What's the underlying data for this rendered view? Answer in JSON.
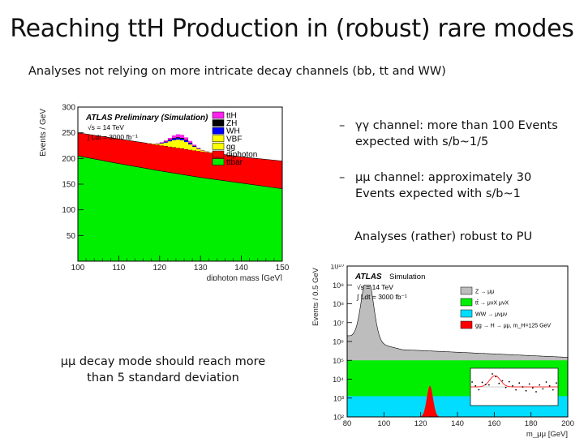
{
  "slide": {
    "title": "Reaching ttH Production in (robust) rare modes",
    "subtitle": "Analyses not relying on more intricate decay channels (bb, tt and WW)"
  },
  "bullets": {
    "gamma": {
      "dash": "–",
      "line1": "γγ channel: more than 100 Events",
      "line2": "expected with s/b~1/5"
    },
    "mumu": {
      "dash": "–",
      "line1": "μμ channel: approximately 30",
      "line2": "Events expected with s/b~1"
    },
    "robust": "Analyses (rather) robust to PU",
    "mumu_decay_line1": "μμ decay mode should reach more",
    "mumu_decay_line2": "than 5 standard deviation"
  },
  "chart_data": [
    {
      "type": "area",
      "ylabel": "Events / GeV",
      "xlabel": "diphoton mass [GeV]",
      "xlim": [
        100,
        150
      ],
      "ylim": [
        0,
        300
      ],
      "xticks": [
        "100",
        "110",
        "120",
        "130",
        "140",
        "150"
      ],
      "yticks": [
        "50",
        "100",
        "150",
        "200",
        "250",
        "300"
      ],
      "header": "ATLAS Preliminary (Simulation)",
      "energy": "√s = 14 TeV",
      "lumi": "∫ Ldt = 3000 fb⁻¹",
      "legend": [
        "ttH",
        "ZH",
        "WH",
        "VBF",
        "gg",
        "diphoton",
        "ttbar"
      ],
      "colors": {
        "ttH": "#ff22ee",
        "ZH": "#000000",
        "WH": "#0000ff",
        "VBF": "#ffff00",
        "gg": "#ffff00",
        "diphoton": "#ff0000",
        "ttbar": "#00ee00"
      },
      "x": [
        100,
        110,
        120,
        130,
        140,
        150
      ],
      "series": [
        {
          "name": "ttbar",
          "values": [
            205,
            190,
            176,
            163,
            152,
            141
          ]
        },
        {
          "name": "diphoton",
          "values": [
            250,
            238,
            226,
            214,
            203,
            195
          ]
        }
      ],
      "signal_peak": {
        "x": 125,
        "height": 27
      }
    },
    {
      "type": "area",
      "ylabel": "Events / 0.5 GeV",
      "xlabel": "m_μμ [GeV]",
      "log_y": true,
      "xlim": [
        80,
        200
      ],
      "xticks": [
        "80",
        "100",
        "120",
        "140",
        "160",
        "180",
        "200"
      ],
      "yticks": [
        "10²",
        "10³",
        "10⁴",
        "10⁵",
        "10⁶",
        "10⁷",
        "10⁸",
        "10⁹",
        "10¹⁰"
      ],
      "header": "ATLAS",
      "header_sub": "Simulation",
      "energy": "√s = 14 TeV",
      "lumi": "∫ Ldt = 3000 fb⁻¹",
      "legend": [
        "Z → μμ",
        "tt̄ → μνX μνX",
        "WW → μνμν",
        "gg → H → μμ, m_H=125 GeV"
      ],
      "colors": {
        "Z": "#bdbdbd",
        "tt": "#00ee00",
        "WW": "#00ddff",
        "H": "#ff0000"
      },
      "z_peak": {
        "x": 91,
        "value": 1000000000.0
      },
      "h_peak": {
        "x": 125,
        "value": 2000
      }
    }
  ]
}
